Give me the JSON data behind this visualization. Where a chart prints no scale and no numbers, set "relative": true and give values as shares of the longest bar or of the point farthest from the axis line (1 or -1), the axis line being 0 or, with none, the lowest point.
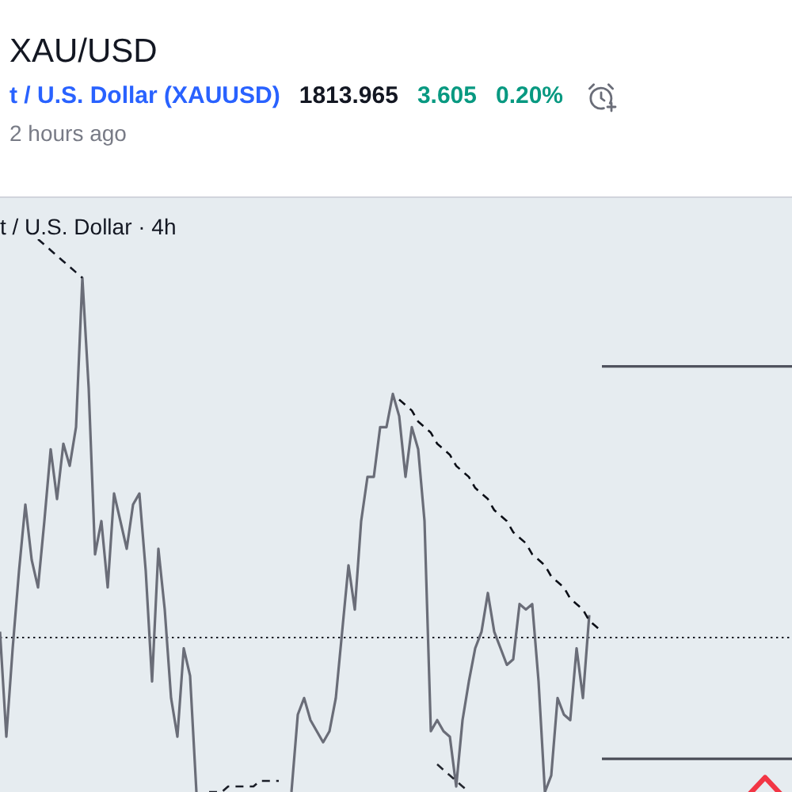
{
  "chart_data": {
    "type": "line",
    "title": "XAU/USD",
    "subtitle": "t / U.S. Dollar (XAUUSD)",
    "annotations": [
      "1813.965",
      "3.605",
      "0.20%",
      "2 hours ago",
      "t / U.S. Dollar · 4h"
    ],
    "relative": true,
    "tick_labels": false,
    "categories": [
      null,
      null,
      null,
      null,
      null,
      null,
      null,
      null,
      null,
      null,
      null,
      null,
      null,
      null,
      null,
      null,
      null,
      null,
      null,
      null,
      null,
      null,
      null,
      null,
      null,
      null,
      null,
      null,
      null,
      null,
      null,
      null,
      null,
      null,
      null,
      null,
      null,
      null,
      null,
      null,
      null,
      null,
      null,
      null,
      null,
      null,
      null,
      null,
      null,
      null,
      null,
      null,
      null,
      null,
      null,
      null,
      null,
      null,
      null,
      null,
      null,
      null,
      null,
      null,
      null,
      null,
      null,
      null,
      null,
      null,
      null,
      null,
      null,
      null,
      null,
      null,
      null,
      null,
      null,
      null,
      null,
      null,
      null,
      null,
      null,
      null,
      null,
      null,
      null,
      null,
      null,
      null,
      null,
      null,
      null,
      null,
      null,
      null,
      null,
      null,
      null,
      null,
      null,
      null,
      null,
      null,
      null,
      null,
      null,
      null,
      null,
      null,
      null,
      null,
      null,
      null,
      null,
      null,
      null,
      null,
      null,
      null,
      null,
      null,
      null,
      null
    ],
    "series": [
      {
        "color": "#6a6d78",
        "line_style": "solid",
        "values": [
          0.29,
          0.1,
          0.26,
          0.4,
          0.52,
          0.42,
          0.37,
          0.49,
          0.62,
          0.53,
          0.63,
          0.59,
          0.66,
          0.93,
          0.73,
          0.43,
          0.49,
          0.37,
          0.54,
          0.49,
          0.44,
          0.52,
          0.54,
          0.4,
          0.2,
          0.44,
          0.33,
          0.17,
          0.1,
          0.26,
          0.21,
          0,
          null,
          null,
          null,
          null,
          null,
          null,
          null,
          null,
          null,
          null,
          null,
          null,
          null,
          null,
          0,
          0.14,
          0.17,
          0.13,
          0.11,
          0.09,
          0.11,
          0.17,
          0.29,
          0.41,
          0.33,
          0.49,
          0.57,
          0.57,
          0.66,
          0.66,
          0.72,
          0.68,
          0.57,
          0.66,
          0.62,
          0.49,
          0.11,
          0.13,
          0.11,
          0.1,
          0.01,
          0.13,
          0.2,
          0.26,
          0.29,
          0.36,
          0.29,
          0.26,
          0.23,
          0.24,
          0.34,
          0.33,
          0.34,
          0.2,
          0,
          0.03,
          0.17,
          0.14,
          0.13,
          0.26,
          0.17,
          0.32,
          null,
          null,
          null,
          null,
          null,
          null,
          null,
          null,
          null,
          null,
          null,
          null,
          null,
          null,
          null,
          null,
          null,
          null,
          null,
          null,
          null,
          null,
          null,
          null,
          null,
          null,
          null,
          null,
          null,
          null,
          null,
          null
        ]
      },
      {
        "color": "#131722",
        "line_style": "dashed",
        "values": [
          null,
          null,
          null,
          null,
          null,
          null,
          1,
          0.99,
          0.98,
          0.97,
          0.96,
          0.95,
          0.94,
          0.93,
          null,
          null,
          null,
          null,
          null,
          null,
          null,
          null,
          null,
          null,
          null,
          null,
          null,
          null,
          null,
          null,
          null,
          null,
          null,
          null,
          null,
          null,
          null,
          null,
          null,
          null,
          null,
          null,
          null,
          null,
          null,
          null,
          null,
          null,
          null,
          null,
          null,
          null,
          null,
          null,
          null,
          null,
          null,
          null,
          null,
          null,
          null,
          null,
          null,
          null,
          null,
          null,
          null,
          null,
          null,
          null,
          null,
          null,
          null,
          null,
          null,
          null,
          null,
          null,
          null,
          null,
          null,
          null,
          null,
          null,
          null,
          null,
          null,
          null,
          null,
          null,
          null,
          null,
          null,
          null,
          null,
          null,
          null,
          null,
          null,
          null,
          null,
          null,
          null,
          null,
          null,
          null,
          null,
          null,
          null,
          null,
          null,
          null,
          null,
          null,
          null,
          null,
          null,
          null,
          null,
          null,
          null,
          null,
          null,
          null,
          null,
          null
        ]
      },
      {
        "color": "#1b1e28",
        "line_style": "dashed",
        "values": [
          null,
          null,
          null,
          null,
          null,
          null,
          null,
          null,
          null,
          null,
          null,
          null,
          null,
          null,
          null,
          null,
          null,
          null,
          null,
          null,
          null,
          null,
          null,
          null,
          null,
          null,
          null,
          null,
          null,
          null,
          null,
          null,
          null,
          0,
          0,
          0,
          0.01,
          0.01,
          0.01,
          0.01,
          0.01,
          0.02,
          0.02,
          0.02,
          0.02,
          null,
          null,
          null,
          null,
          null,
          null,
          null,
          null,
          null,
          null,
          null,
          null,
          null,
          null,
          null,
          null,
          null,
          null,
          null,
          null,
          null,
          null,
          null,
          null,
          null,
          null,
          null,
          null,
          null,
          null,
          null,
          null,
          null,
          null,
          null,
          null,
          null,
          null,
          null,
          null,
          null,
          null,
          null,
          null,
          null,
          null,
          null,
          null,
          null,
          null,
          null,
          null,
          null,
          null,
          null,
          null,
          null,
          null,
          null,
          null,
          null,
          null,
          null,
          null,
          null,
          null,
          null,
          null,
          null,
          null,
          null,
          null,
          null,
          null,
          null,
          null,
          null,
          null,
          null,
          null,
          null
        ]
      },
      {
        "color": "#24272f",
        "line_style": "dashed",
        "values": [
          null,
          null,
          null,
          null,
          null,
          null,
          null,
          null,
          null,
          null,
          null,
          null,
          null,
          null,
          null,
          null,
          null,
          null,
          null,
          null,
          null,
          null,
          null,
          null,
          null,
          null,
          null,
          null,
          null,
          null,
          null,
          null,
          null,
          null,
          null,
          null,
          null,
          null,
          null,
          null,
          null,
          null,
          null,
          null,
          null,
          null,
          null,
          null,
          null,
          null,
          null,
          null,
          null,
          null,
          null,
          null,
          null,
          null,
          null,
          null,
          null,
          null,
          null,
          null,
          null,
          null,
          null,
          null,
          null,
          0.05,
          0.04,
          0.03,
          0.02,
          0.01,
          0,
          null,
          null,
          null,
          null,
          null,
          null,
          null,
          null,
          null,
          null,
          null,
          null,
          null,
          null,
          null,
          null,
          null,
          null,
          null,
          null,
          null,
          null,
          null,
          null,
          null,
          null,
          null,
          null,
          null,
          null,
          null,
          null,
          null,
          null,
          null,
          null,
          null,
          null,
          null,
          null,
          null,
          null,
          null,
          null,
          null,
          null,
          null,
          null,
          null,
          null,
          null
        ]
      },
      {
        "color": "#0c0f17",
        "line_style": "dashed",
        "values": [
          null,
          null,
          null,
          null,
          null,
          null,
          null,
          null,
          null,
          null,
          null,
          null,
          null,
          null,
          null,
          null,
          null,
          null,
          null,
          null,
          null,
          null,
          null,
          null,
          null,
          null,
          null,
          null,
          null,
          null,
          null,
          null,
          null,
          null,
          null,
          null,
          null,
          null,
          null,
          null,
          null,
          null,
          null,
          null,
          null,
          null,
          null,
          null,
          null,
          null,
          null,
          null,
          null,
          null,
          null,
          null,
          null,
          null,
          null,
          null,
          null,
          null,
          null,
          0.71,
          0.7,
          0.69,
          0.67,
          0.66,
          0.65,
          0.63,
          0.62,
          0.61,
          0.59,
          0.58,
          0.57,
          0.55,
          0.54,
          0.53,
          0.51,
          0.5,
          0.49,
          0.47,
          0.46,
          0.45,
          0.43,
          0.42,
          0.41,
          0.39,
          0.38,
          0.37,
          0.35,
          0.34,
          0.33,
          0.31,
          0.3,
          0.29,
          null,
          null,
          null,
          null,
          null,
          null,
          null,
          null,
          null,
          null,
          null,
          null,
          null,
          null,
          null,
          null,
          null,
          null,
          null,
          null,
          null,
          null,
          null,
          null,
          null,
          null,
          null,
          null,
          null,
          null
        ]
      },
      {
        "color": "#50535e",
        "line_style": "solid",
        "values": [
          null,
          null,
          null,
          null,
          null,
          null,
          null,
          null,
          null,
          null,
          null,
          null,
          null,
          null,
          null,
          null,
          null,
          null,
          null,
          null,
          null,
          null,
          null,
          null,
          null,
          null,
          null,
          null,
          null,
          null,
          null,
          null,
          null,
          null,
          null,
          null,
          null,
          null,
          null,
          null,
          null,
          null,
          null,
          null,
          null,
          null,
          null,
          null,
          null,
          null,
          null,
          null,
          null,
          null,
          null,
          null,
          null,
          null,
          null,
          null,
          null,
          null,
          null,
          null,
          null,
          null,
          null,
          null,
          null,
          null,
          null,
          null,
          null,
          null,
          null,
          null,
          null,
          null,
          null,
          null,
          null,
          null,
          null,
          null,
          null,
          null,
          null,
          null,
          null,
          null,
          null,
          null,
          null,
          null,
          null,
          0.77,
          0.77,
          0.77,
          0.77,
          0.77,
          0.77,
          0.77,
          0.77,
          0.77,
          0.77,
          0.77,
          0.77,
          0.77,
          0.77,
          0.77,
          0.77,
          0.77,
          0.77,
          0.77,
          0.77,
          0.77,
          0.77,
          0.77,
          0.77,
          0.77,
          0.77,
          0.77,
          0.77,
          0.77,
          0.77,
          0.77
        ]
      },
      {
        "color": "#4a4d57",
        "line_style": "solid",
        "values": [
          null,
          null,
          null,
          null,
          null,
          null,
          null,
          null,
          null,
          null,
          null,
          null,
          null,
          null,
          null,
          null,
          null,
          null,
          null,
          null,
          null,
          null,
          null,
          null,
          null,
          null,
          null,
          null,
          null,
          null,
          null,
          null,
          null,
          null,
          null,
          null,
          null,
          null,
          null,
          null,
          null,
          null,
          null,
          null,
          null,
          null,
          null,
          null,
          null,
          null,
          null,
          null,
          null,
          null,
          null,
          null,
          null,
          null,
          null,
          null,
          null,
          null,
          null,
          null,
          null,
          null,
          null,
          null,
          null,
          null,
          null,
          null,
          null,
          null,
          null,
          null,
          null,
          null,
          null,
          null,
          null,
          null,
          null,
          null,
          null,
          null,
          null,
          null,
          null,
          null,
          null,
          null,
          null,
          null,
          null,
          0.06,
          0.06,
          0.06,
          0.06,
          0.06,
          0.06,
          0.06,
          0.06,
          0.06,
          0.06,
          0.06,
          0.06,
          0.06,
          0.06,
          0.06,
          0.06,
          0.06,
          0.06,
          0.06,
          0.06,
          0.06,
          0.06,
          0.06,
          0.06,
          0.06,
          0.06,
          0.06,
          0.06,
          0.06,
          0.06,
          0.06
        ]
      }
    ],
    "ref_lines": [
      {
        "axis": "y",
        "value": 0.28,
        "color": "#131722",
        "line_style": "dotted"
      }
    ]
  }
}
